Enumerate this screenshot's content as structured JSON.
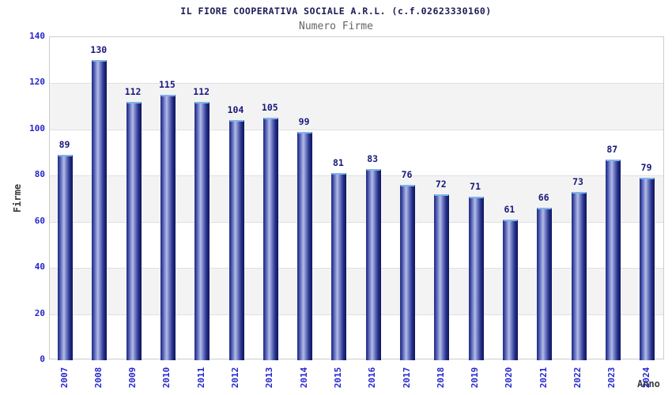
{
  "header": {
    "title": "IL FIORE COOPERATIVA SOCIALE A.R.L. (c.f.02623330160)",
    "subtitle": "Numero Firme"
  },
  "chart_data": {
    "type": "bar",
    "title": "IL FIORE COOPERATIVA SOCIALE A.R.L. (c.f.02623330160)",
    "subtitle": "Numero Firme",
    "xlabel": "Anno",
    "ylabel": "Firme",
    "categories": [
      "2007",
      "2008",
      "2009",
      "2010",
      "2011",
      "2012",
      "2013",
      "2014",
      "2015",
      "2016",
      "2017",
      "2018",
      "2019",
      "2020",
      "2021",
      "2022",
      "2023",
      "2024"
    ],
    "values": [
      89,
      130,
      112,
      115,
      112,
      104,
      105,
      99,
      81,
      83,
      76,
      72,
      71,
      61,
      66,
      73,
      87,
      79
    ],
    "ylim": [
      0,
      140
    ],
    "ytick_step": 20,
    "yticks": [
      0,
      20,
      40,
      60,
      80,
      100,
      120,
      140
    ],
    "grid": "horizontal alternating bands with light gridlines",
    "legend": "none",
    "bar_value_labels": true,
    "colors": {
      "bar_dark": "#161d6e",
      "bar_mid": "#6b77c2",
      "bar_light": "#b3bce6",
      "bar_cap": "#7db4ec",
      "value_label": "#18187d",
      "tick_label": "#2525cd",
      "title": "#1b1b55",
      "subtitle": "#646464",
      "axis_label": "#3a3a3a",
      "band_gray": "#f3f3f3",
      "plot_border": "#cccccc",
      "background": "#ffffff"
    }
  }
}
